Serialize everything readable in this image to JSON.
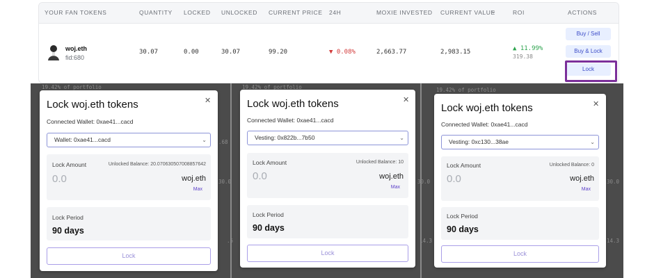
{
  "table": {
    "headers": [
      "YOUR FAN TOKENS",
      "QUANTITY",
      "LOCKED",
      "UNLOCKED",
      "CURRENT PRICE",
      "24H",
      "MOXIE INVESTED",
      "CURRENT VALUE",
      "ROI",
      "ACTIONS"
    ],
    "sort_icon": "chevron-down-icon",
    "row": {
      "name": "woj.eth",
      "fid": "fid:680",
      "quantity": "30.07",
      "locked": "0.00",
      "unlocked": "30.07",
      "current_price": "99.20",
      "change_24h": "▼ 0.08%",
      "moxie_invested": "2,663.77",
      "current_value": "2,983.15",
      "roi_pct": "▲ 11.99%",
      "roi_value": "319.38"
    },
    "actions": [
      "Buy / Sell",
      "Buy & Lock",
      "Lock"
    ]
  },
  "background_fragments": [
    "19.42% of portfolio",
    "19.42% of portfolio",
    "19.42% of portfolio",
    ".68",
    "30.0",
    "30.0",
    "30.0",
    "14.3",
    "14.3",
    ".5"
  ],
  "modals": [
    {
      "title": "Lock woj.eth tokens",
      "connected": "Connected Wallet: 0xae41...cacd",
      "select_value": "Wallet: 0xae41...cacd",
      "amount_label": "Lock Amount",
      "balance": "Unlocked Balance: 20.070630507008857642",
      "amount": "0.0",
      "token": "woj.eth",
      "max": "Max",
      "period_label": "Lock Period",
      "period": "90 days",
      "button": "Lock"
    },
    {
      "title": "Lock woj.eth tokens",
      "connected": "Connected Wallet: 0xae41...cacd",
      "select_value": "Vesting: 0x822b...7b50",
      "amount_label": "Lock Amount",
      "balance": "Unlocked Balance: 10",
      "amount": "0.0",
      "token": "woj.eth",
      "max": "Max",
      "period_label": "Lock Period",
      "period": "90 days",
      "button": "Lock"
    },
    {
      "title": "Lock woj.eth tokens",
      "connected": "Connected Wallet: 0xae41...cacd",
      "select_value": "Vesting: 0xc130...38ae",
      "amount_label": "Lock Amount",
      "balance": "Unlocked Balance: 0",
      "amount": "0.0",
      "token": "woj.eth",
      "max": "Max",
      "period_label": "Lock Period",
      "period": "90 days",
      "button": "Lock"
    }
  ],
  "colors": {
    "accent": "#7b2f9a",
    "negative": "#d23a3a",
    "positive": "#2ea44f",
    "overlay": "#4b4b4b"
  }
}
